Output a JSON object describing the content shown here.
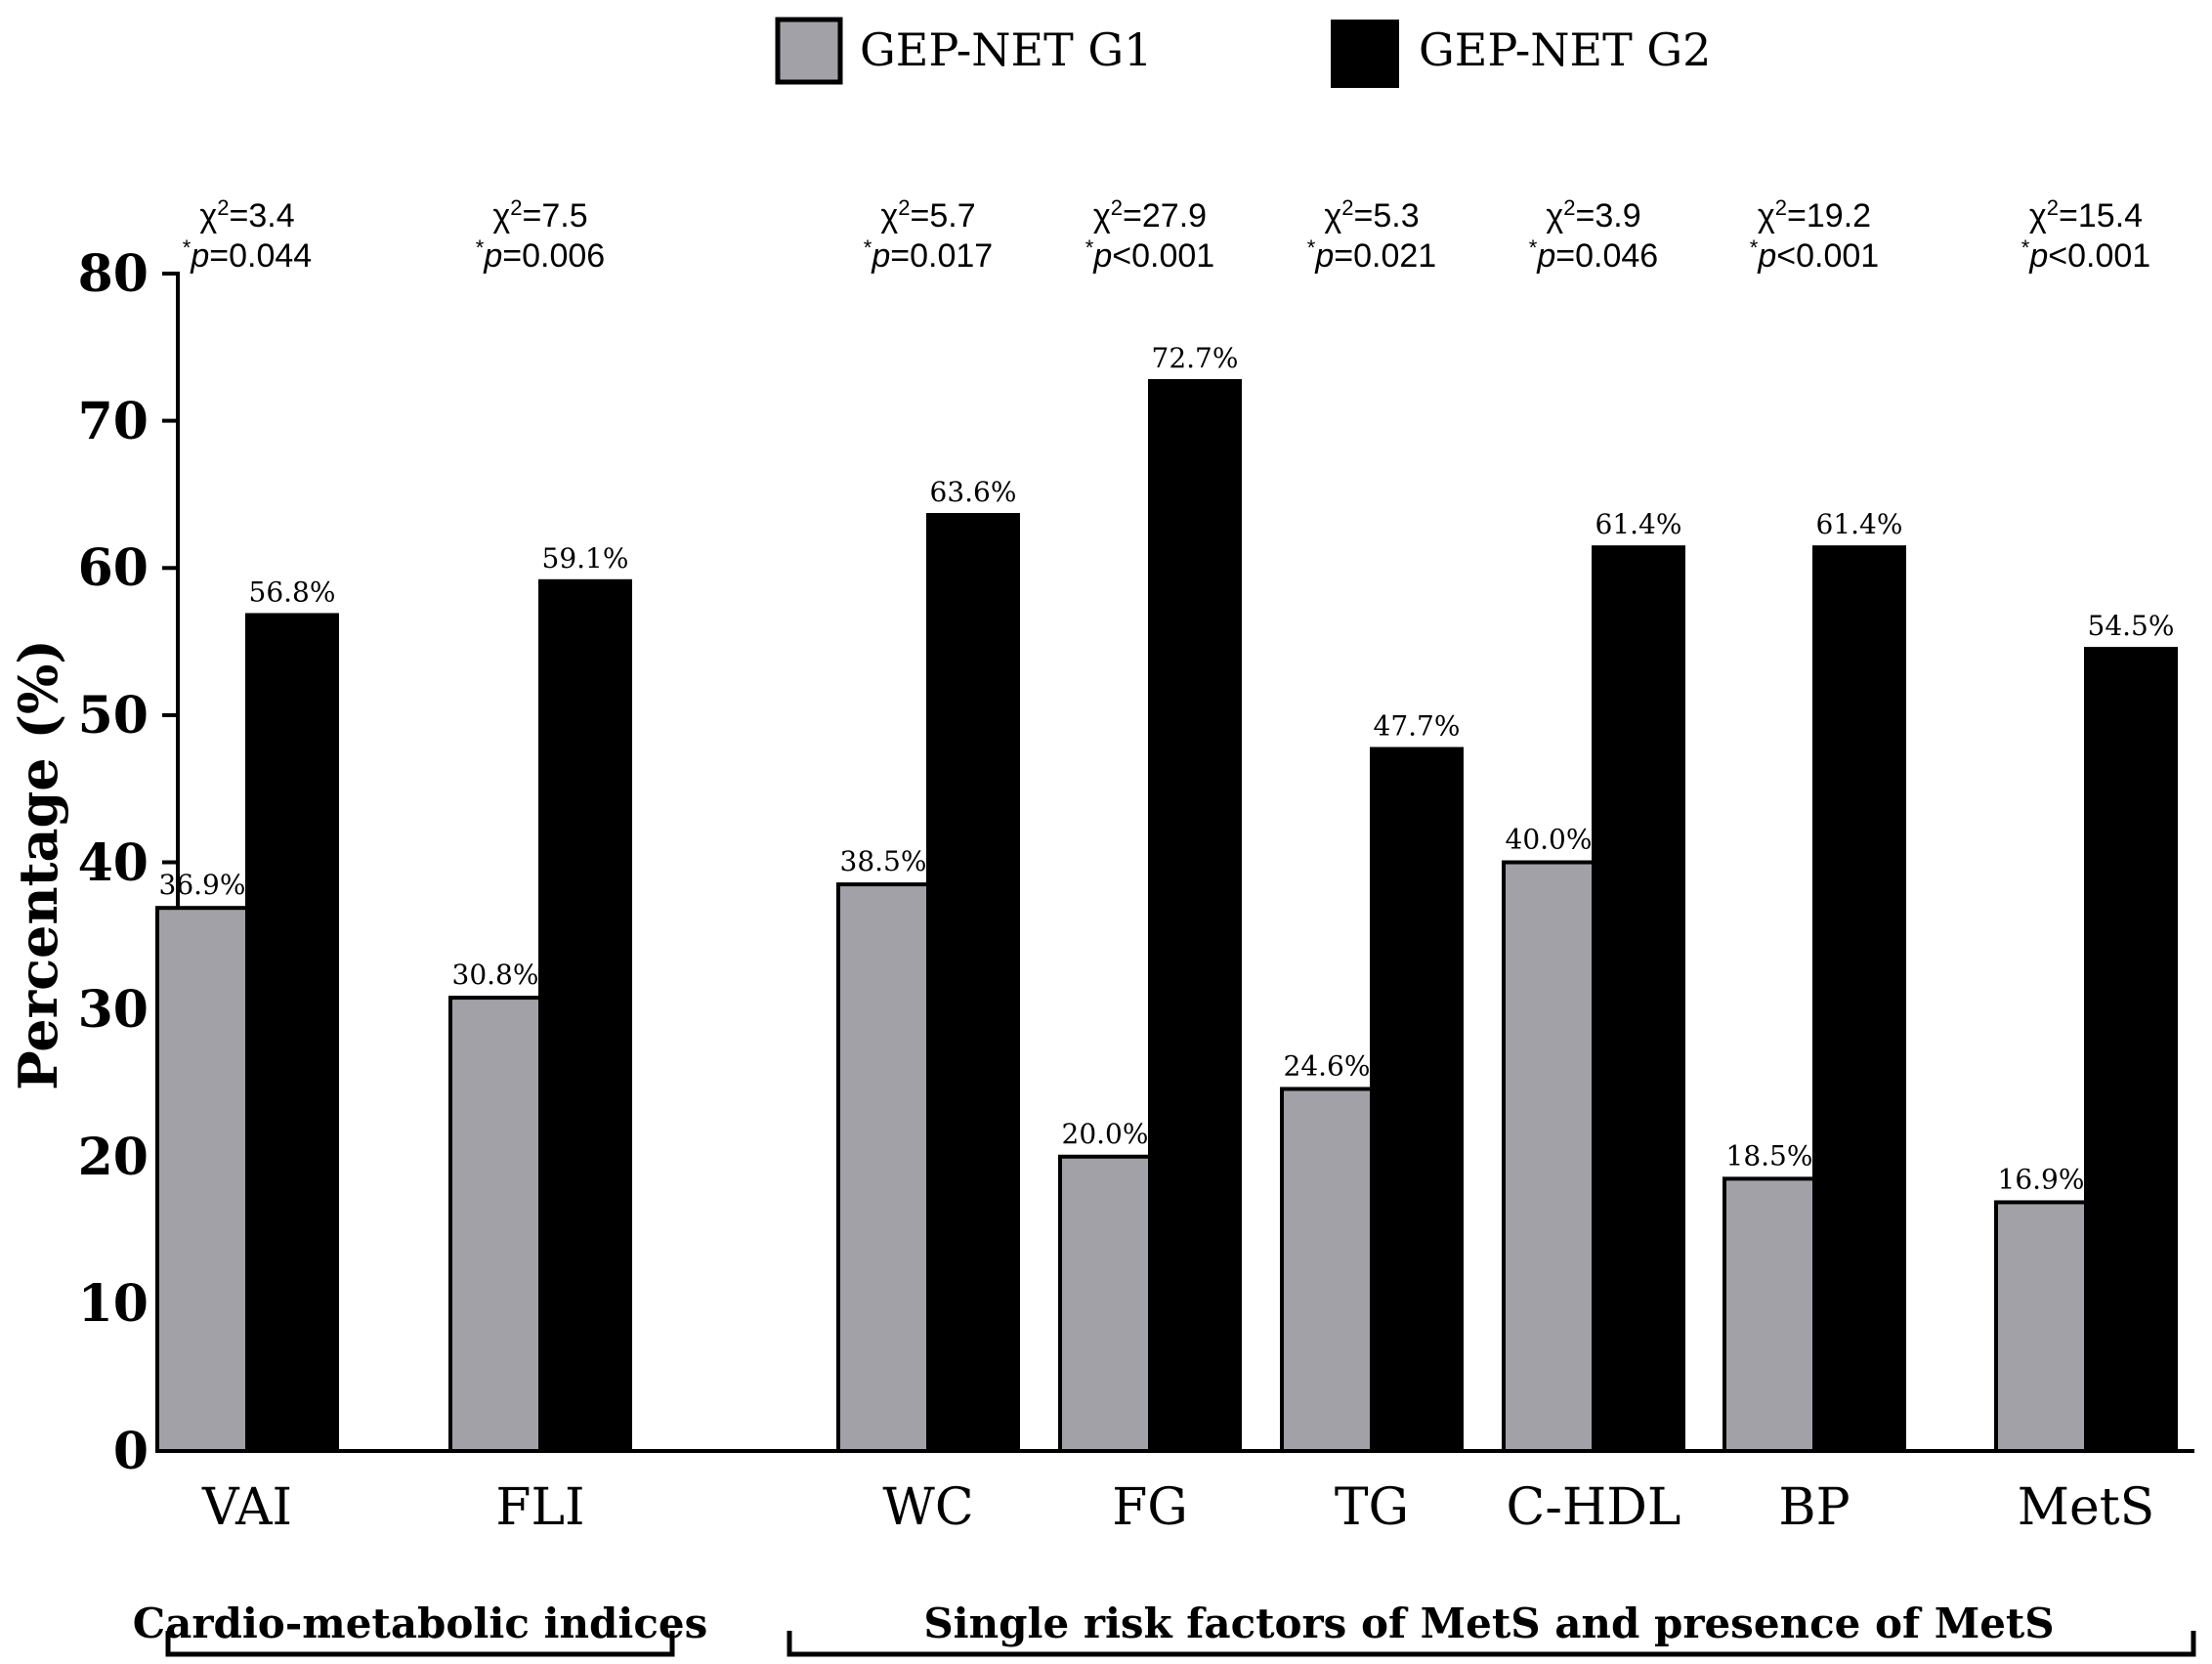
{
  "chart_data": {
    "type": "bar",
    "ylabel": "Percentage (%)",
    "ylim": [
      0,
      80
    ],
    "yticks": [
      "0",
      "10",
      "20",
      "30",
      "40",
      "50",
      "60",
      "70",
      "80"
    ],
    "categories": [
      "VAI",
      "FLI",
      "WC",
      "FG",
      "TG",
      "C-HDL",
      "BP",
      "MetS"
    ],
    "series": [
      {
        "name": "GEP-NET G1",
        "color": "#a2a1a7",
        "values": [
          36.9,
          30.8,
          38.5,
          20.0,
          24.6,
          40.0,
          18.5,
          16.9
        ],
        "labels": [
          "36.9%",
          "30.8%",
          "38.5%",
          "20.0%",
          "24.6%",
          "40.0%",
          "18.5%",
          "16.9%"
        ]
      },
      {
        "name": "GEP-NET G2",
        "color": "#000000",
        "values": [
          56.8,
          59.1,
          63.6,
          72.7,
          47.7,
          61.4,
          61.4,
          54.5
        ],
        "labels": [
          "56.8%",
          "59.1%",
          "63.6%",
          "72.7%",
          "47.7%",
          "61.4%",
          "61.4%",
          "54.5%"
        ]
      }
    ],
    "stats": [
      {
        "chi": "3.4",
        "op": "=",
        "p": "0.044"
      },
      {
        "chi": "7.5",
        "op": "=",
        "p": "0.006"
      },
      {
        "chi": "5.7",
        "op": "=",
        "p": "0.017"
      },
      {
        "chi": "27.9",
        "op": "<",
        "p": "0.001"
      },
      {
        "chi": "5.3",
        "op": "=",
        "p": "0.021"
      },
      {
        "chi": "3.9",
        "op": "=",
        "p": "0.046"
      },
      {
        "chi": "19.2",
        "op": "<",
        "p": "0.001"
      },
      {
        "chi": "15.4",
        "op": "<",
        "p": "0.001"
      }
    ],
    "groups": [
      {
        "label": "Cardio-metabolic indices",
        "categories": [
          "VAI",
          "FLI"
        ]
      },
      {
        "label": "Single risk factors of MetS and presence of MetS",
        "categories": [
          "WC",
          "FG",
          "TG",
          "C-HDL",
          "BP",
          "MetS"
        ]
      }
    ],
    "legend_position": "top-center"
  }
}
